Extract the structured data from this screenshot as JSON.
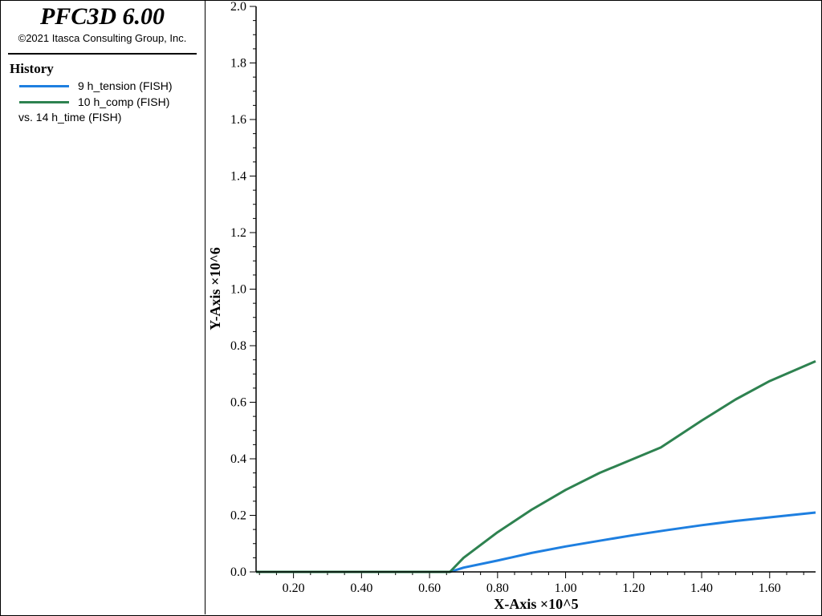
{
  "app": {
    "title": "PFC3D 6.00",
    "copyright": "©2021 Itasca Consulting Group, Inc."
  },
  "legend": {
    "heading": "History",
    "entries": [
      {
        "label": "9 h_tension (FISH)",
        "color": "#1e7fe0"
      },
      {
        "label": "10 h_comp (FISH)",
        "color": "#2e8250"
      }
    ],
    "x_ref": "vs. 14 h_time (FISH)"
  },
  "chart_data": {
    "type": "line",
    "xlabel": "X-Axis ×10^5",
    "ylabel": "Y-Axis ×10^6",
    "xlim": [
      0.09,
      1.735
    ],
    "ylim": [
      0.0,
      2.0
    ],
    "x_ticks": [
      "0.20",
      "0.40",
      "0.60",
      "0.80",
      "1.00",
      "1.20",
      "1.40",
      "1.60"
    ],
    "y_ticks": [
      "0.0",
      "0.2",
      "0.4",
      "0.6",
      "0.8",
      "1.0",
      "1.2",
      "1.4",
      "1.6",
      "1.8",
      "2.0"
    ],
    "grid": false,
    "series": [
      {
        "name": "9 h_tension (FISH)",
        "color": "#1e7fe0",
        "x": [
          0.09,
          0.66,
          0.7,
          0.8,
          0.9,
          1.0,
          1.1,
          1.2,
          1.3,
          1.4,
          1.5,
          1.6,
          1.735
        ],
        "y": [
          0.0,
          0.0,
          0.015,
          0.04,
          0.067,
          0.09,
          0.11,
          0.13,
          0.148,
          0.165,
          0.18,
          0.193,
          0.21
        ]
      },
      {
        "name": "10 h_comp (FISH)",
        "color": "#2e8250",
        "x": [
          0.09,
          0.66,
          0.7,
          0.8,
          0.9,
          1.0,
          1.1,
          1.2,
          1.28,
          1.4,
          1.5,
          1.6,
          1.735
        ],
        "y": [
          0.0,
          0.0,
          0.05,
          0.14,
          0.22,
          0.29,
          0.35,
          0.4,
          0.44,
          0.535,
          0.61,
          0.675,
          0.745
        ]
      }
    ]
  }
}
